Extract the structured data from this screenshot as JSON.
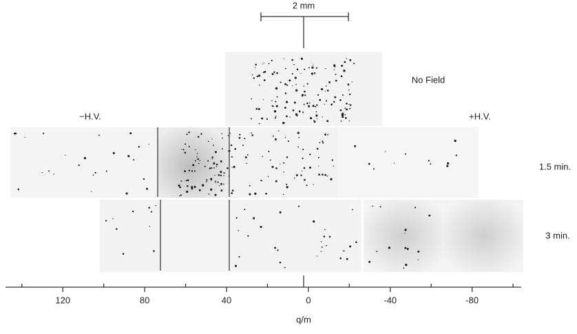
{
  "figure": {
    "scale_bar": "2 mm",
    "labels": {
      "no_field": "No Field",
      "minus_hv": "−H.V.",
      "plus_hv": "+H.V."
    },
    "rows": [
      "1.5 min.",
      "3 min."
    ],
    "axis": {
      "label": "q/m",
      "xlim": [
        148,
        -104
      ],
      "xticks": [
        120,
        80,
        40,
        0,
        -40,
        -80
      ],
      "minor_xticks": [
        140,
        100,
        60,
        20,
        -20,
        -60,
        -100
      ]
    }
  }
}
